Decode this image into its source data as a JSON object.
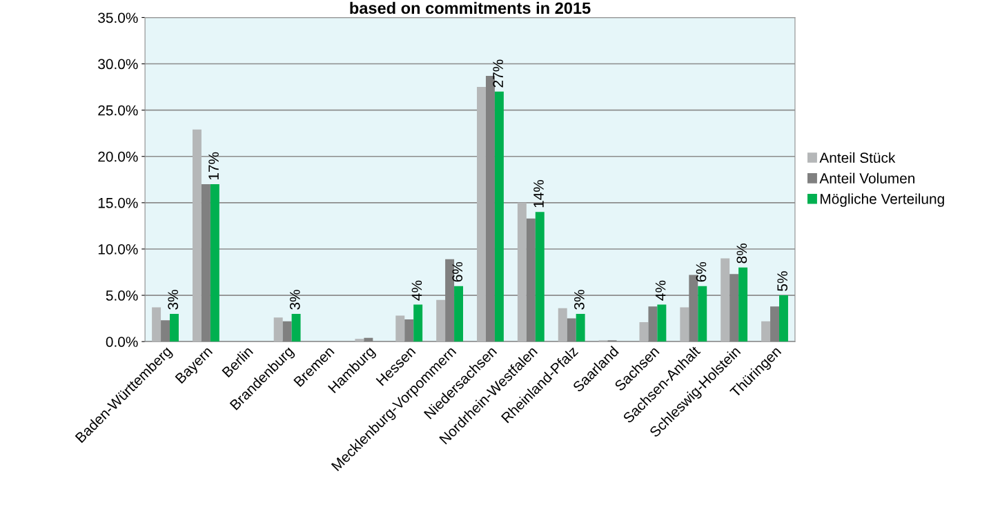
{
  "chart_data": {
    "type": "bar",
    "title": "based on commitments in 2015",
    "categories": [
      "Baden-Württemberg",
      "Bayern",
      "Berlin",
      "Brandenburg",
      "Bremen",
      "Hamburg",
      "Hessen",
      "Mecklenburg-Vorpommern",
      "Niedersachsen",
      "Nordrhein-Westfalen",
      "Rheinland-Pfalz",
      "Saarland",
      "Sachsen",
      "Sachsen-Anhalt",
      "Schleswig-Holstein",
      "Thüringen"
    ],
    "series": [
      {
        "name": "Anteil Stück",
        "color": "#b5b7b8",
        "values": [
          3.7,
          22.9,
          null,
          2.6,
          null,
          0.3,
          2.8,
          4.5,
          27.5,
          15.0,
          3.6,
          0.15,
          2.1,
          3.7,
          9.0,
          2.2
        ]
      },
      {
        "name": "Anteil Volumen",
        "color": "#808080",
        "values": [
          2.3,
          17.0,
          null,
          2.2,
          null,
          0.4,
          2.4,
          8.9,
          28.7,
          13.3,
          2.5,
          0.15,
          3.8,
          7.2,
          7.3,
          3.8
        ]
      },
      {
        "name": "Mögliche Verteilung",
        "color": "#00b050",
        "values": [
          3,
          17,
          0,
          3,
          0,
          0,
          4,
          6,
          27,
          14,
          3,
          0,
          4,
          6,
          8,
          5
        ],
        "value_labels": [
          "3%",
          "17%",
          null,
          "3%",
          null,
          null,
          "4%",
          "6%",
          "27%",
          "14%",
          "3%",
          null,
          "4%",
          "6%",
          "8%",
          "5%"
        ]
      }
    ],
    "ylim": [
      0,
      35
    ],
    "yticks": [
      {
        "value": 0,
        "label": "0.0%"
      },
      {
        "value": 5,
        "label": "5.0%"
      },
      {
        "value": 10,
        "label": "10.0%"
      },
      {
        "value": 15,
        "label": "15.0%"
      },
      {
        "value": 20,
        "label": "20.0%"
      },
      {
        "value": 25,
        "label": "25.0%"
      },
      {
        "value": 30,
        "label": "30.0%"
      },
      {
        "value": 35,
        "label": "35.0%"
      }
    ],
    "grid": "y",
    "legend": "right"
  }
}
